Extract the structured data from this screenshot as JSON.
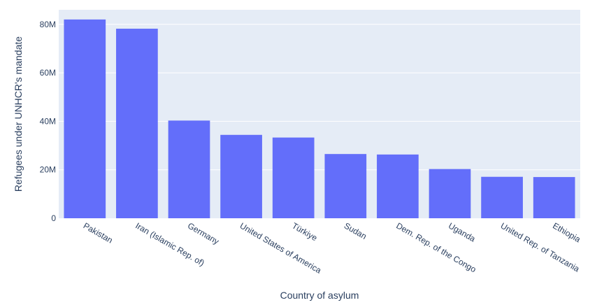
{
  "colors": {
    "plot_bg": "#e5ecf6",
    "bar": "#636efa",
    "grid": "#ffffff",
    "text": "#2a3f5f"
  },
  "chart_data": {
    "type": "bar",
    "title": "",
    "xlabel": "Country of asylum",
    "ylabel": "Refugees under UNHCR's mandate",
    "categories": [
      "Pakistan",
      "Iran (Islamic Rep. of)",
      "Germany",
      "United States of America",
      "Türkiye",
      "Sudan",
      "Dem. Rep. of the Congo",
      "Uganda",
      "United Rep. of Tanzania",
      "Ethiopia"
    ],
    "values": [
      82000000,
      78200000,
      40300000,
      34400000,
      33300000,
      26500000,
      26300000,
      20300000,
      17100000,
      17000000
    ],
    "ylim": [
      0,
      86000000
    ],
    "yticks": [
      0,
      20000000,
      40000000,
      60000000,
      80000000
    ],
    "ytick_labels": [
      "0",
      "20M",
      "40M",
      "60M",
      "80M"
    ],
    "grid": true,
    "legend": "none"
  }
}
